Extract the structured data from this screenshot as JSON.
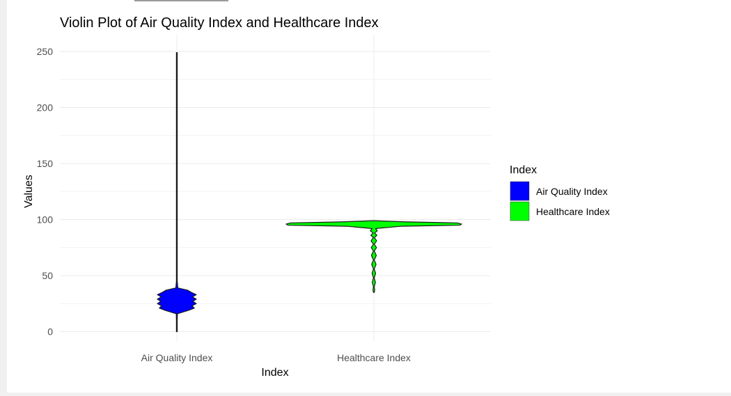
{
  "chart_data": {
    "type": "violin",
    "title": "Violin Plot of Air Quality Index and Healthcare Index",
    "xlabel": "Index",
    "ylabel": "Values",
    "categories": [
      "Air Quality Index",
      "Healthcare Index"
    ],
    "ylim": [
      -8,
      260
    ],
    "yticks": [
      0,
      50,
      100,
      150,
      200,
      250
    ],
    "grid": true,
    "legend": {
      "title": "Index",
      "position": "right",
      "entries": [
        "Air Quality Index",
        "Healthcare Index"
      ]
    },
    "series": [
      {
        "name": "Air Quality Index",
        "color": "#0000ff",
        "min": 0,
        "max": 249,
        "density": [
          [
            0,
            0.0
          ],
          [
            10,
            0.002
          ],
          [
            16,
            0.03
          ],
          [
            19,
            0.6
          ],
          [
            21,
            0.9
          ],
          [
            23,
            0.78
          ],
          [
            25,
            1.0
          ],
          [
            27,
            0.82
          ],
          [
            29,
            1.0
          ],
          [
            31,
            0.8
          ],
          [
            33,
            1.0
          ],
          [
            35,
            0.75
          ],
          [
            37,
            0.55
          ],
          [
            39,
            0.05
          ],
          [
            45,
            0.004
          ],
          [
            100,
            0.002
          ],
          [
            249,
            0.0
          ]
        ]
      },
      {
        "name": "Healthcare Index",
        "color": "#00ff00",
        "min": 35,
        "max": 99,
        "density": [
          [
            35,
            0.0
          ],
          [
            37,
            0.01
          ],
          [
            40,
            0.004
          ],
          [
            44,
            0.018
          ],
          [
            48,
            0.004
          ],
          [
            52,
            0.02
          ],
          [
            56,
            0.004
          ],
          [
            60,
            0.025
          ],
          [
            64,
            0.004
          ],
          [
            68,
            0.028
          ],
          [
            72,
            0.004
          ],
          [
            75,
            0.03
          ],
          [
            78,
            0.005
          ],
          [
            81,
            0.032
          ],
          [
            84,
            0.006
          ],
          [
            86,
            0.035
          ],
          [
            88,
            0.008
          ],
          [
            90,
            0.04
          ],
          [
            92,
            0.02
          ],
          [
            94,
            0.3
          ],
          [
            95,
            0.98
          ],
          [
            96,
            1.0
          ],
          [
            97,
            0.95
          ],
          [
            98,
            0.35
          ],
          [
            99,
            0.0
          ]
        ]
      }
    ]
  }
}
